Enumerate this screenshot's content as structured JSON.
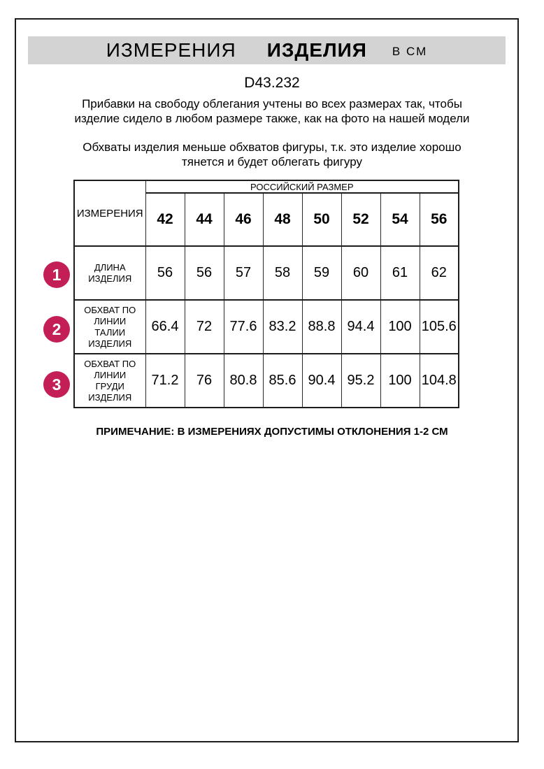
{
  "header": {
    "title_part1": "ИЗМЕРЕНИЯ",
    "title_part2": "ИЗДЕЛИЯ",
    "title_unit": "В СМ"
  },
  "product_code": "D43.232",
  "paragraphs": {
    "fit_allowance": "Прибавки на свободу облегания учтены во всех размерах так, чтобы изделие сидело в любом размере также, как на фото на нашей модели",
    "stretch_note": "Обхваты изделия меньше обхватов фигуры, т.к. это изделие хорошо тянется и будет облегать фигуру"
  },
  "table": {
    "measurements_header": "ИЗМЕРЕНИЯ",
    "size_group_header": "РОССИЙСКИЙ РАЗМЕР",
    "sizes": [
      "42",
      "44",
      "46",
      "48",
      "50",
      "52",
      "54",
      "56"
    ],
    "rows": [
      {
        "num": "1",
        "label": "ДЛИНА ИЗДЕЛИЯ",
        "values": [
          "56",
          "56",
          "57",
          "58",
          "59",
          "60",
          "61",
          "62"
        ]
      },
      {
        "num": "2",
        "label": "ОБХВАТ ПО ЛИНИИ ТАЛИИ ИЗДЕЛИЯ",
        "values": [
          "66.4",
          "72",
          "77.6",
          "83.2",
          "88.8",
          "94.4",
          "100",
          "105.6"
        ]
      },
      {
        "num": "3",
        "label": "ОБХВАТ ПО ЛИНИИ ГРУДИ ИЗДЕЛИЯ",
        "values": [
          "71.2",
          "76",
          "80.8",
          "85.6",
          "90.4",
          "95.2",
          "100",
          "104.8"
        ]
      }
    ]
  },
  "note": "ПРИМЕЧАНИЕ: В ИЗМЕРЕНИЯХ ДОПУСТИМЫ ОТКЛОНЕНИЯ 1-2 СМ",
  "colors": {
    "accent": "#C41E56",
    "header_bg": "#D3D3D3"
  }
}
